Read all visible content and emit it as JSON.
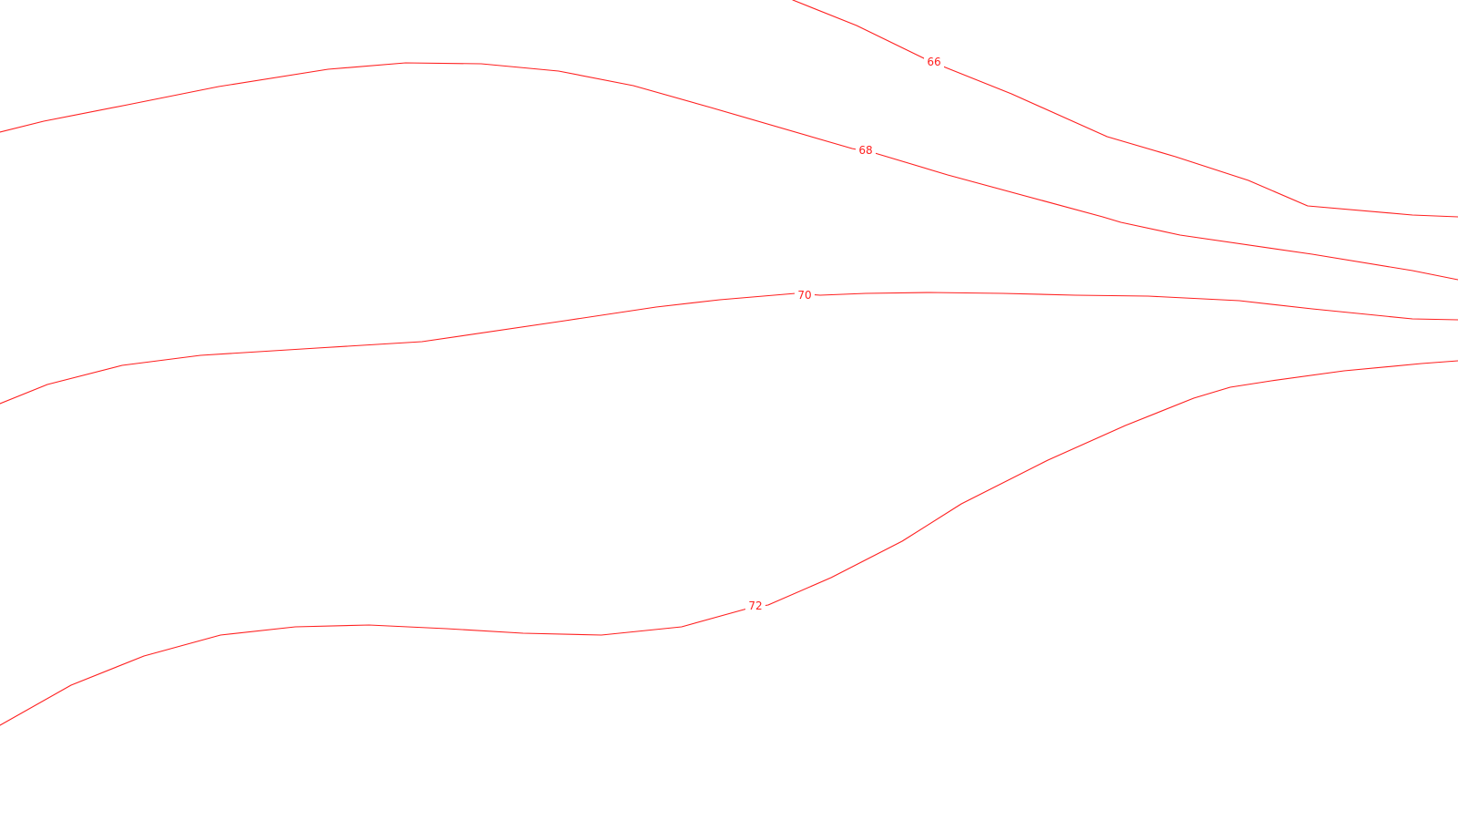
{
  "map": {
    "line_color": "#ff2020",
    "label_color": "#ff2020",
    "background": "#ffffff",
    "contours": [
      {
        "value": 66,
        "label": "66"
      },
      {
        "value": 68,
        "label": "68"
      },
      {
        "value": 70,
        "label": "70"
      },
      {
        "value": 72,
        "label": "72"
      }
    ]
  }
}
